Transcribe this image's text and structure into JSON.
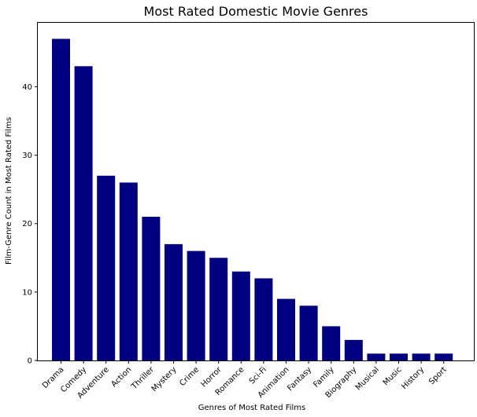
{
  "chart_data": {
    "type": "bar",
    "title": "Most Rated Domestic Movie Genres",
    "xlabel": "Genres of Most Rated Films",
    "ylabel": "Film-Genre Count in Most Rated Films",
    "categories": [
      "Drama",
      "Comedy",
      "Adventure",
      "Action",
      "Thriller",
      "Mystery",
      "Crime",
      "Horror",
      "Romance",
      "Sci-Fi",
      "Animation",
      "Fantasy",
      "Family",
      "Biography",
      "Musical",
      "Music",
      "History",
      "Sport"
    ],
    "values": [
      47,
      43,
      27,
      26,
      21,
      17,
      16,
      15,
      13,
      12,
      9,
      8,
      5,
      3,
      1,
      1,
      1,
      1
    ],
    "yticks": [
      0,
      10,
      20,
      30,
      40
    ],
    "ylim": [
      0,
      49.35
    ],
    "bar_color": "#000080",
    "grid": false,
    "xtick_rotation": 45
  }
}
